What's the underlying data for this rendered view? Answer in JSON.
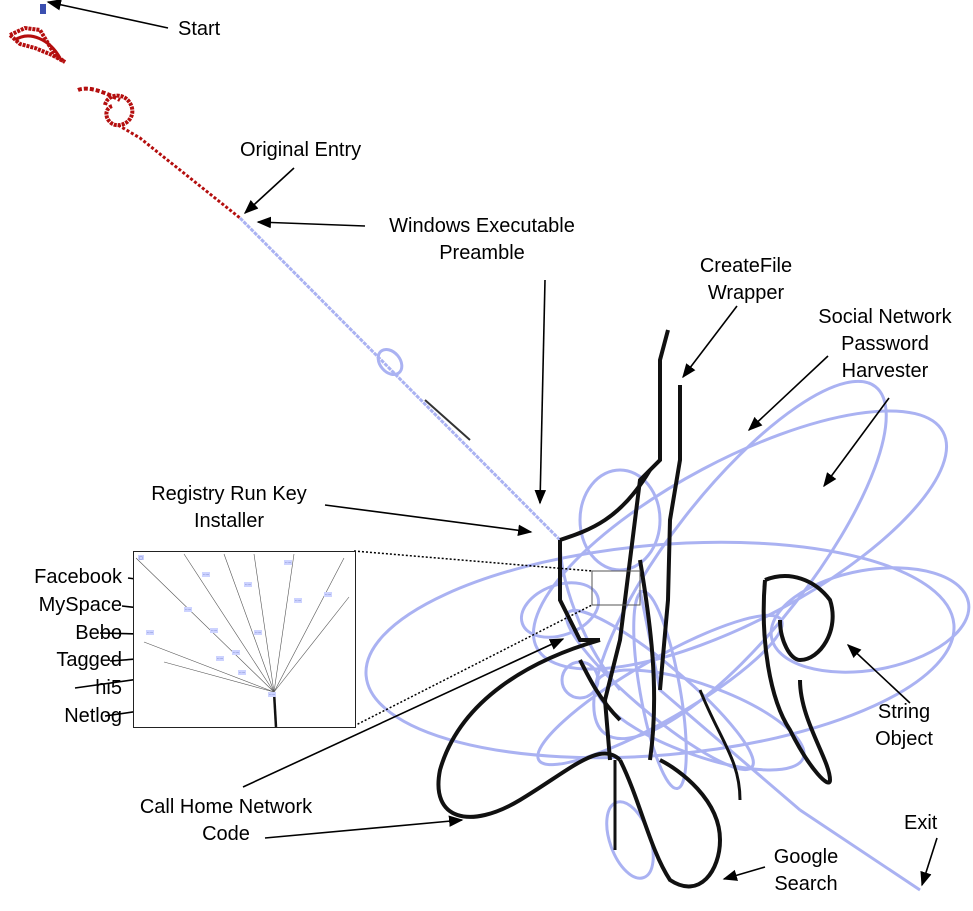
{
  "colors": {
    "trace_dark": "#111111",
    "trace_light": "#aab2f2",
    "trace_red": "#b40e0e",
    "annotation": "#000000"
  },
  "labels": {
    "start": "Start",
    "original_entry": "Original Entry",
    "windows_preamble": [
      "Windows Executable",
      "Preamble"
    ],
    "createfile": [
      "CreateFile",
      "Wrapper"
    ],
    "social_network": [
      "Social Network",
      "Password",
      "Harvester"
    ],
    "registry": [
      "Registry Run Key",
      "Installer"
    ],
    "inset_list": [
      "Facebook",
      "MySpace",
      "Bebo",
      "Tagged",
      "hi5",
      "Netlog"
    ],
    "string_object": [
      "String",
      "Object"
    ],
    "call_home": [
      "Call Home Network",
      "Code"
    ],
    "exit": "Exit",
    "google": [
      "Google",
      "Search"
    ]
  }
}
